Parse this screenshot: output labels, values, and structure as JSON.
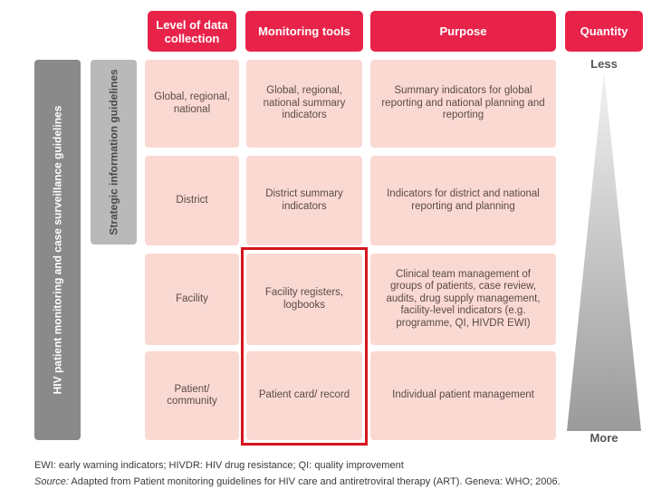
{
  "headers": {
    "level": "Level of data collection",
    "tools": "Monitoring tools",
    "purpose": "Purpose",
    "quantity": "Quantity"
  },
  "guidelines": {
    "hiv": "HIV patient monitoring and case surveillance guidelines",
    "strategic": "Strategic information guidelines"
  },
  "rows": [
    {
      "level": "Global, regional, national",
      "tool": "Global, regional, national summary indicators",
      "purpose": "Summary indicators for global reporting and national planning and reporting"
    },
    {
      "level": "District",
      "tool": "District summary indicators",
      "purpose": "Indicators for district and national reporting and planning"
    },
    {
      "level": "Facility",
      "tool": "Facility registers, logbooks",
      "purpose": "Clinical team management of groups of patients, case review, audits, drug supply management, facility-level indicators (e.g. programme, QI, HIVDR EWI)"
    },
    {
      "level": "Patient/ community",
      "tool": "Patient card/ record",
      "purpose": "Individual patient management"
    }
  ],
  "quantity": {
    "less": "Less",
    "more": "More"
  },
  "footer": {
    "abbrev": "EWI: early warning indicators; HIVDR: HIV drug resistance; QI: quality improvement",
    "source_label": "Source:",
    "source_text": "Adapted from Patient monitoring guidelines for HIV care and antiretroviral therapy (ART). Geneva: WHO; 2006."
  },
  "colors": {
    "header": "#e8234a",
    "cell": "#fbd9d3",
    "highlight": "#d6141d",
    "bar_dark": "#8a8a8a",
    "bar_light": "#b9b9b9"
  }
}
